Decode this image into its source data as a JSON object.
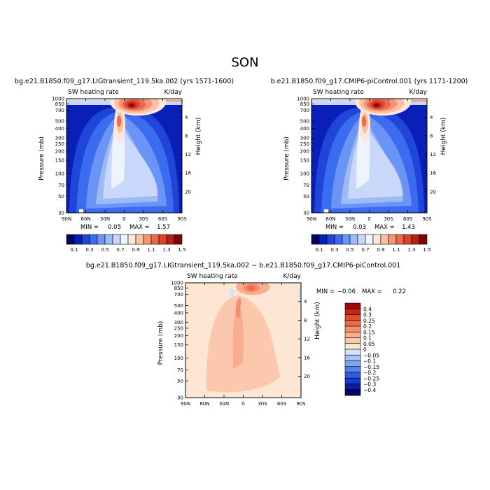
{
  "chart_data": {
    "type": "heatmap",
    "title": "SON",
    "panels": [
      {
        "id": "lig",
        "subtitle": "bg.e21.B1850.f09_g17.LIGtransient_119.5ka.002 (yrs 1571-1600)",
        "variable": "SW heating rate",
        "units": "K/day",
        "min_label": "MIN =",
        "min_value": "0.05",
        "max_label": "MAX =",
        "max_value": "1.57",
        "peaks": [
          {
            "lat": -15,
            "p": 875,
            "value": 1.57
          },
          {
            "lat": 7,
            "p": 500,
            "value": 1.1
          }
        ]
      },
      {
        "id": "pic",
        "subtitle": "b.e21.B1850.f09_g17.CMIP6-piControl.001 (yrs 1171-1200)",
        "variable": "SW heating rate",
        "units": "K/day",
        "min_label": "MIN =",
        "min_value": "0.03",
        "max_label": "MAX =",
        "max_value": "1.43",
        "peaks": [
          {
            "lat": -15,
            "p": 875,
            "value": 1.43
          },
          {
            "lat": 7,
            "p": 500,
            "value": 1.0
          }
        ]
      },
      {
        "id": "diff",
        "subtitle": "bg.e21.B1850.f09_g17.LIGtransient_119.5ka.002 − b.e21.B1850.f09_g17.CMIP6-piControl.001",
        "variable": "SW heating rate",
        "units": "K/day",
        "min_label": "MIN =",
        "min_value": "−0.06",
        "max_label": "MAX =",
        "max_value": "0.22",
        "peaks": [
          {
            "lat": -15,
            "p": 875,
            "value": 0.22
          },
          {
            "lat": 7,
            "p": 450,
            "value": 0.12
          }
        ]
      }
    ],
    "x_axis": {
      "ticks": [
        {
          "lat": 90,
          "label": "90N"
        },
        {
          "lat": 60,
          "label": "60N"
        },
        {
          "lat": 30,
          "label": "30N"
        },
        {
          "lat": 0,
          "label": "0"
        },
        {
          "lat": -30,
          "label": "30S"
        },
        {
          "lat": -60,
          "label": "60S"
        },
        {
          "lat": -90,
          "label": "90S"
        }
      ],
      "range": [
        90,
        -90
      ]
    },
    "y_axis": {
      "label": "Pressure (mb)",
      "scale": "log",
      "range": [
        1000,
        30
      ],
      "ticks": [
        {
          "p": 1000,
          "label": "1000"
        },
        {
          "p": 850,
          "label": "850"
        },
        {
          "p": 700,
          "label": "700"
        },
        {
          "p": 500,
          "label": "500"
        },
        {
          "p": 400,
          "label": "400"
        },
        {
          "p": 300,
          "label": "300"
        },
        {
          "p": 250,
          "label": "250"
        },
        {
          "p": 200,
          "label": "200"
        },
        {
          "p": 150,
          "label": "150"
        },
        {
          "p": 100,
          "label": "100"
        },
        {
          "p": 70,
          "label": "70"
        },
        {
          "p": 50,
          "label": "50"
        },
        {
          "p": 30,
          "label": "30"
        }
      ]
    },
    "y2_axis": {
      "label": "Height (km)",
      "ticks": [
        {
          "km": 4,
          "label": "4"
        },
        {
          "km": 8,
          "label": "8"
        },
        {
          "km": 12,
          "label": "12"
        },
        {
          "km": 16,
          "label": "16"
        },
        {
          "km": 20,
          "label": "20"
        }
      ]
    },
    "colorbar_abs": {
      "orientation": "horizontal",
      "labels": [
        "0.1",
        "0.3",
        "0.5",
        "0.7",
        "0.9",
        "1.1",
        "1.3",
        "1.5"
      ],
      "colors": [
        "#03045e",
        "#0a1fb8",
        "#1f45d9",
        "#3b6cf0",
        "#6a94f5",
        "#9dbaf7",
        "#c9d8fa",
        "#eef3fd",
        "#fde6da",
        "#fcc0a4",
        "#f59575",
        "#ea6a49",
        "#d9432c",
        "#b81d16",
        "#7f0000"
      ]
    },
    "colorbar_diff": {
      "orientation": "vertical",
      "labels": [
        "0.4",
        "0.3",
        "0.25",
        "0.2",
        "0.15",
        "0.1",
        "0.05",
        "0",
        "−0.05",
        "−0.1",
        "−0.15",
        "−0.2",
        "−0.25",
        "−0.3",
        "−0.4"
      ],
      "colors": [
        "#9b0b0b",
        "#c8250f",
        "#e24b2b",
        "#ee6b4a",
        "#f48f6e",
        "#f8ad8f",
        "#fbc8ae",
        "#fde6d4",
        "#d3e1fb",
        "#a9c3f7",
        "#7fa3f2",
        "#5681ec",
        "#2e5ce0",
        "#1a39c8",
        "#0b1ca3",
        "#03045e"
      ]
    }
  }
}
